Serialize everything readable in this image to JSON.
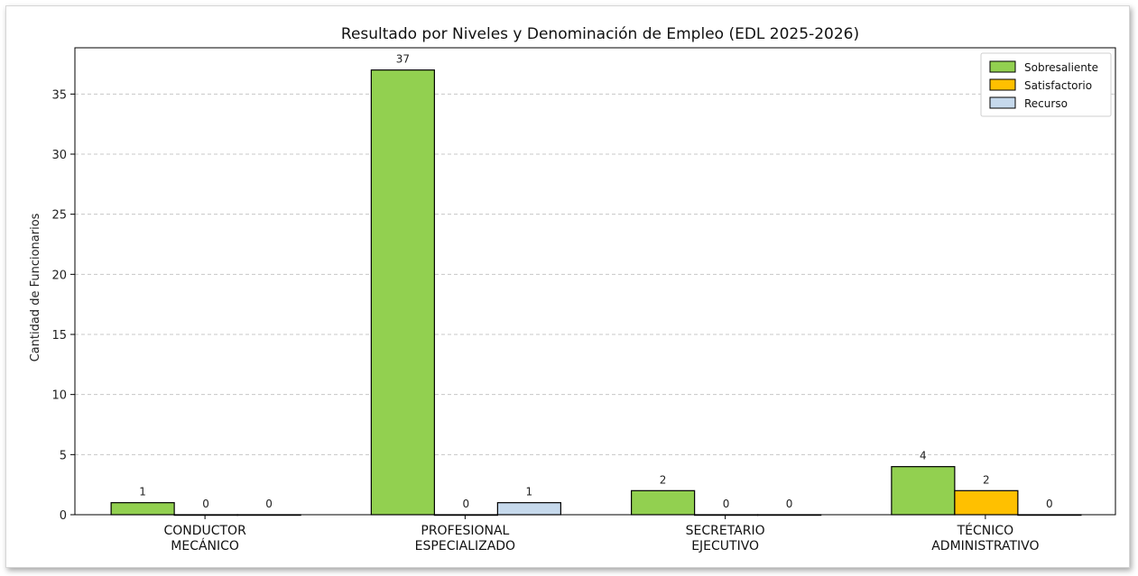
{
  "chart_data": {
    "type": "bar",
    "title": "Resultado por Niveles y Denominación de Empleo (EDL 2025-2026)",
    "xlabel": "",
    "ylabel": "Cantidad de Funcionarios",
    "ylim": [
      0,
      38.85
    ],
    "yticks": [
      0,
      5,
      10,
      15,
      20,
      25,
      30,
      35
    ],
    "grid": "horizontal-dashed",
    "legend_position": "top-right",
    "categories": [
      [
        "CONDUCTOR",
        "MECÁNICO"
      ],
      [
        "PROFESIONAL",
        "ESPECIALIZADO"
      ],
      [
        "SECRETARIO",
        "EJECUTIVO"
      ],
      [
        "TÉCNICO",
        "ADMINISTRATIVO"
      ]
    ],
    "series": [
      {
        "name": "Sobresaliente",
        "color": "#92d050",
        "values": [
          1,
          37,
          2,
          4
        ]
      },
      {
        "name": "Satisfactorio",
        "color": "#ffc000",
        "values": [
          0,
          0,
          0,
          2
        ]
      },
      {
        "name": "Recurso",
        "color": "#c6d9ec",
        "values": [
          0,
          1,
          0,
          0
        ]
      }
    ]
  }
}
